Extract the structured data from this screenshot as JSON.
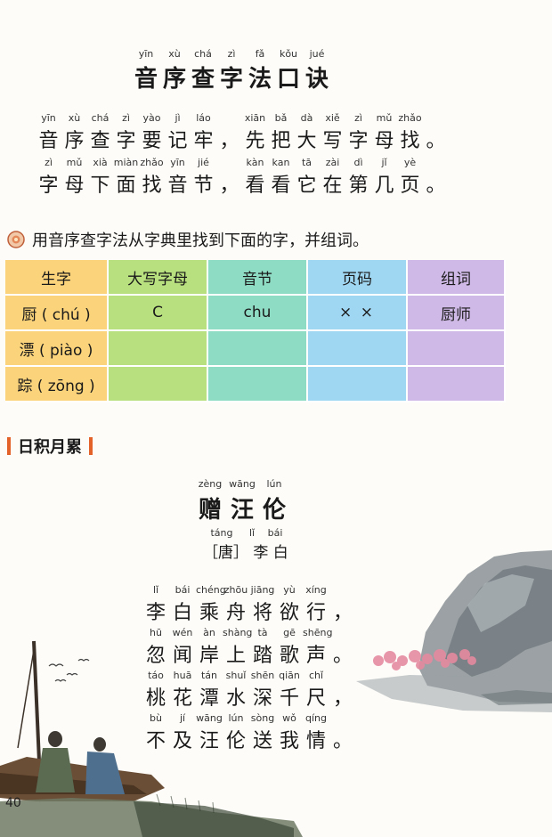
{
  "jue": {
    "title_py": [
      "yīn",
      "xù",
      "chá",
      "zì",
      "fǎ",
      "kǒu",
      "jué"
    ],
    "title_hz": [
      "音",
      "序",
      "查",
      "字",
      "法",
      "口",
      "诀"
    ],
    "line1_py": [
      "yīn",
      "xù",
      "chá",
      "zì",
      "yào",
      "jì",
      "láo",
      "",
      "xiān",
      "bǎ",
      "dà",
      "xiě",
      "zì",
      "mǔ",
      "zhǎo"
    ],
    "line1_hz": [
      "音",
      "序",
      "查",
      "字",
      "要",
      "记",
      "牢",
      "，",
      "先",
      "把",
      "大",
      "写",
      "字",
      "母",
      "找",
      "。"
    ],
    "line2_py": [
      "zì",
      "mǔ",
      "xià",
      "miàn",
      "zhǎo",
      "yīn",
      "jié",
      "",
      "kàn",
      "kan",
      "tā",
      "zài",
      "dì",
      "jǐ",
      "yè"
    ],
    "line2_hz": [
      "字",
      "母",
      "下",
      "面",
      "找",
      "音",
      "节",
      "，",
      "看",
      "看",
      "它",
      "在",
      "第",
      "几",
      "页",
      "。"
    ]
  },
  "exercise": {
    "instruction": "用音序查字法从字典里找到下面的字，并组词。",
    "table": {
      "headers": [
        "生字",
        "大写字母",
        "音节",
        "页码",
        "组词"
      ],
      "rows": [
        [
          "厨 ( chú )",
          "C",
          "chu",
          "× ×",
          "厨师"
        ],
        [
          "漂 ( piào )",
          "",
          "",
          "",
          ""
        ],
        [
          "踪 ( zōng )",
          "",
          "",
          "",
          ""
        ]
      ]
    }
  },
  "section": {
    "label": "日积月累"
  },
  "poem": {
    "title_py": [
      "zèng",
      "wāng",
      "lún"
    ],
    "title_hz": [
      "赠",
      "汪",
      "伦"
    ],
    "author_py": [
      "táng",
      "lǐ",
      "bái"
    ],
    "author": "［唐］ 李 白",
    "lines_py": [
      [
        "lǐ",
        "bái",
        "chéng",
        "zhōu",
        "jiāng",
        "yù",
        "xíng"
      ],
      [
        "hū",
        "wén",
        "àn",
        "shàng",
        "tà",
        "gē",
        "shēng"
      ],
      [
        "táo",
        "huā",
        "tán",
        "shuǐ",
        "shēn",
        "qiān",
        "chǐ"
      ],
      [
        "bù",
        "jí",
        "wāng",
        "lún",
        "sòng",
        "wǒ",
        "qíng"
      ]
    ],
    "lines_hz": [
      [
        "李",
        "白",
        "乘",
        "舟",
        "将",
        "欲",
        "行",
        "，"
      ],
      [
        "忽",
        "闻",
        "岸",
        "上",
        "踏",
        "歌",
        "声",
        "。"
      ],
      [
        "桃",
        "花",
        "潭",
        "水",
        "深",
        "千",
        "尺",
        "，"
      ],
      [
        "不",
        "及",
        "汪",
        "伦",
        "送",
        "我",
        "情",
        "。"
      ]
    ]
  },
  "page_number": "40",
  "colors": {
    "table_col1": "#fbd37a",
    "table_col2": "#b8e07e",
    "table_col3": "#8fdcc4",
    "table_col4": "#9fd6f2",
    "table_col5": "#cfb9e6",
    "section_bar": "#e2622a"
  }
}
